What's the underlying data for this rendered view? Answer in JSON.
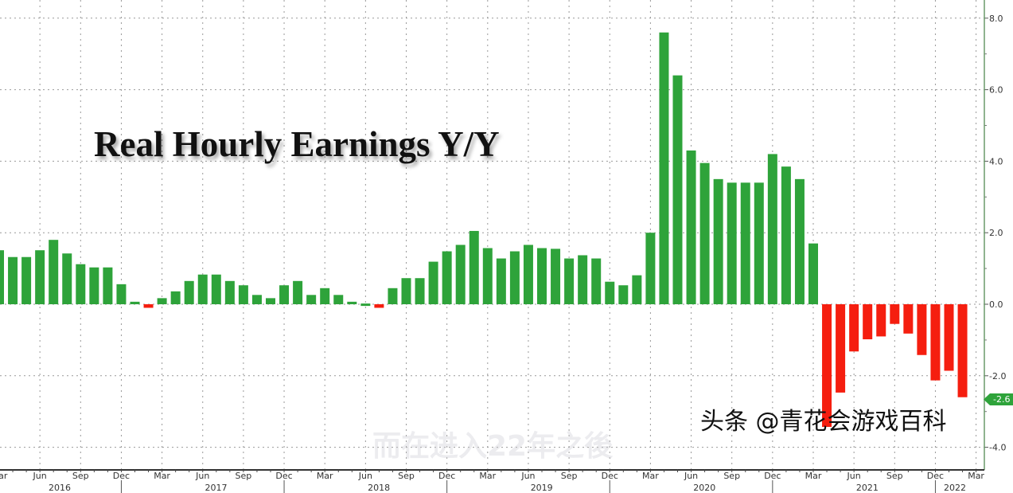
{
  "chart_data": {
    "type": "bar",
    "title": "Real Hourly Earnings Y/Y",
    "xlabel": "",
    "ylabel": "",
    "ylim": [
      -4.0,
      8.0
    ],
    "y_ticks": [
      "8.0",
      "6.0",
      "4.0",
      "2.0",
      "0.0",
      "-2.0",
      "-4.0"
    ],
    "grid": true,
    "y_axis_position": "right",
    "positive_color": "#2ea33a",
    "negative_color": "#f51e0f",
    "categories_start": "2016-03",
    "categories_end": "2022-02",
    "month_tick_labels": [
      "Mar",
      "Jun",
      "Sep",
      "Dec",
      "Mar",
      "Jun",
      "Sep",
      "Dec",
      "Mar",
      "Jun",
      "Sep",
      "Dec",
      "Mar",
      "Jun",
      "Sep",
      "Dec",
      "Mar",
      "Jun",
      "Sep",
      "Dec",
      "Mar",
      "Jun",
      "Sep",
      "Dec",
      "Mar"
    ],
    "year_labels": [
      "2016",
      "2017",
      "2018",
      "2019",
      "2020",
      "2021",
      "2022"
    ],
    "values": [
      1.51,
      1.32,
      1.32,
      1.51,
      1.8,
      1.42,
      1.12,
      1.03,
      1.03,
      0.56,
      0.07,
      -0.1,
      0.17,
      0.36,
      0.65,
      0.83,
      0.83,
      0.65,
      0.53,
      0.26,
      0.17,
      0.53,
      0.65,
      0.26,
      0.45,
      0.26,
      0.07,
      0.02,
      -0.1,
      0.45,
      0.73,
      0.73,
      1.19,
      1.48,
      1.66,
      2.05,
      1.57,
      1.28,
      1.48,
      1.66,
      1.57,
      1.55,
      1.28,
      1.37,
      1.28,
      0.63,
      0.53,
      0.81,
      2.0,
      7.6,
      6.4,
      4.3,
      3.95,
      3.5,
      3.4,
      3.4,
      3.4,
      4.2,
      3.85,
      3.5,
      1.7,
      -3.43,
      -2.47,
      -1.32,
      -0.98,
      -0.9,
      -0.55,
      -0.82,
      -1.42,
      -2.13,
      -1.86,
      -2.6
    ],
    "last_value_label": "-2.6"
  },
  "watermarks": {
    "faded": "而在进入22年之後",
    "credit": "头条 @青花会游戏百科"
  }
}
